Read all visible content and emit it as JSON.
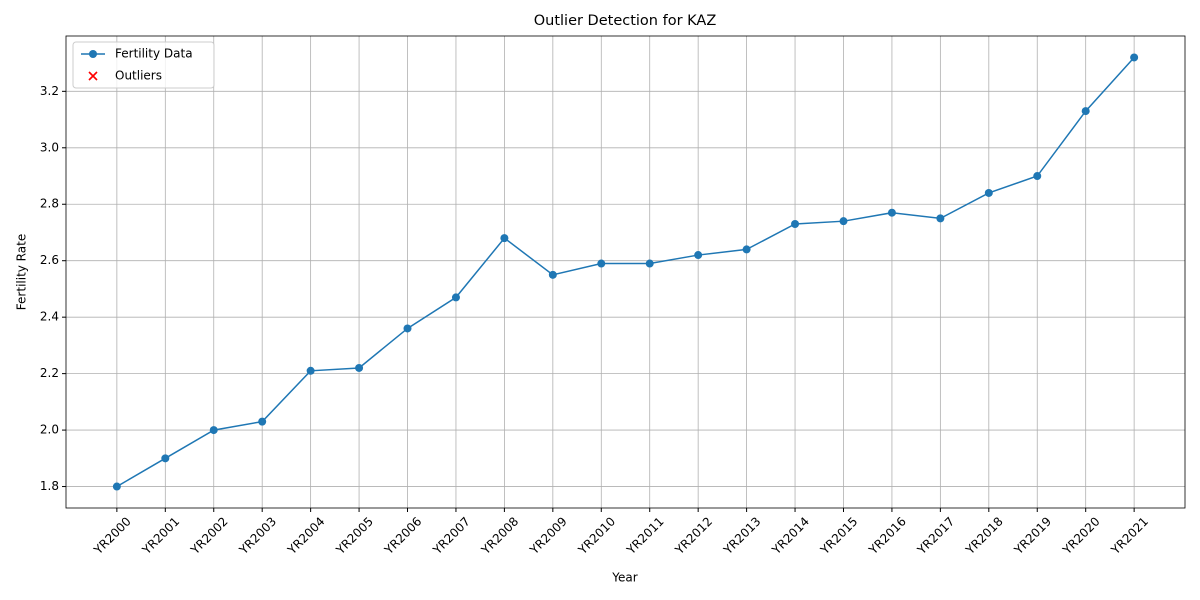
{
  "chart_data": {
    "type": "line",
    "title": "Outlier Detection for KAZ",
    "xlabel": "Year",
    "ylabel": "Fertility Rate",
    "categories": [
      "YR2000",
      "YR2001",
      "YR2002",
      "YR2003",
      "YR2004",
      "YR2005",
      "YR2006",
      "YR2007",
      "YR2008",
      "YR2009",
      "YR2010",
      "YR2011",
      "YR2012",
      "YR2013",
      "YR2014",
      "YR2015",
      "YR2016",
      "YR2017",
      "YR2018",
      "YR2019",
      "YR2020",
      "YR2021"
    ],
    "series": [
      {
        "name": "Fertility Data",
        "color": "#1f77b4",
        "marker": "o",
        "values": [
          1.8,
          1.9,
          2.0,
          2.03,
          2.21,
          2.22,
          2.36,
          2.47,
          2.68,
          2.55,
          2.59,
          2.59,
          2.62,
          2.64,
          2.73,
          2.74,
          2.77,
          2.75,
          2.84,
          2.9,
          3.13,
          3.32
        ]
      },
      {
        "name": "Outliers",
        "color": "#ff0000",
        "marker": "x",
        "values": [
          null,
          null,
          null,
          null,
          null,
          null,
          null,
          null,
          null,
          null,
          null,
          null,
          null,
          null,
          null,
          null,
          null,
          null,
          null,
          null,
          null,
          null
        ]
      }
    ],
    "ylim": [
      1.724,
      3.396
    ],
    "yticks": [
      1.8,
      {
        "value": 2.0,
        "label": "2.0"
      },
      2.2,
      2.4,
      2.6,
      2.8,
      {
        "value": 3.0,
        "label": "3.0"
      },
      3.2
    ],
    "grid": true,
    "legend": "upper left"
  }
}
